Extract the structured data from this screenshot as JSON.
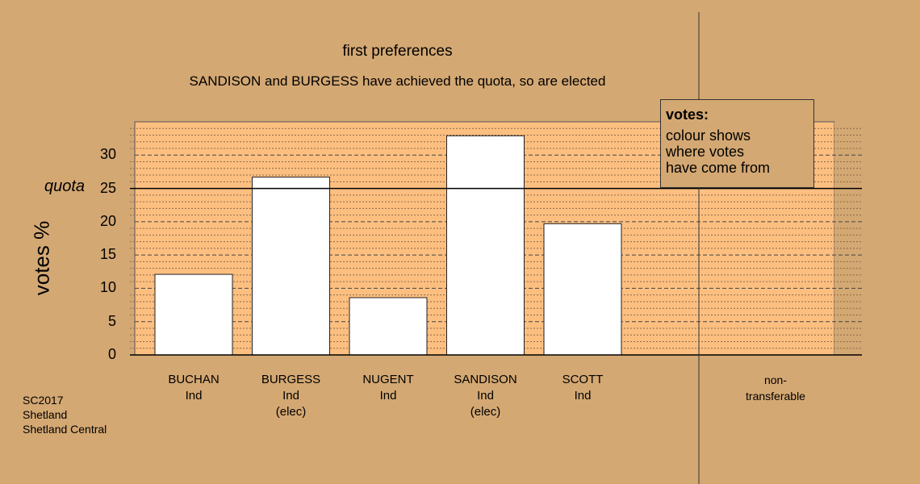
{
  "title": "first preferences",
  "subtitle": "SANDISON and BURGESS have achieved the quota, so are elected",
  "legend": {
    "title": "votes:",
    "lines": [
      "colour shows",
      "where votes",
      "have come from"
    ]
  },
  "colors": {
    "background": "#d4a873",
    "plot_fill": "#fcbf80",
    "bar_fill": "#ffffff",
    "nontransferable_fill": "#d4a873"
  },
  "source": [
    "SC2017",
    "Shetland",
    "Shetland Central"
  ],
  "chart_data": {
    "type": "bar",
    "ylabel": "votes %",
    "ylim": [
      0,
      35
    ],
    "yticks": [
      0,
      5,
      10,
      15,
      20,
      25,
      30
    ],
    "quota": 25,
    "quota_label": "quota",
    "grid": "dotted every 1, dashed every 5",
    "categories": [
      {
        "name": "BUCHAN",
        "party": "Ind",
        "status": "",
        "value": 12.1
      },
      {
        "name": "BURGESS",
        "party": "Ind",
        "status": "(elec)",
        "value": 26.7
      },
      {
        "name": "NUGENT",
        "party": "Ind",
        "status": "",
        "value": 8.6
      },
      {
        "name": "SANDISON",
        "party": "Ind",
        "status": "(elec)",
        "value": 32.9
      },
      {
        "name": "SCOTT",
        "party": "Ind",
        "status": "",
        "value": 19.7
      }
    ],
    "nontransferable": {
      "line1": "non-",
      "line2": "transferable",
      "value": 0
    }
  }
}
